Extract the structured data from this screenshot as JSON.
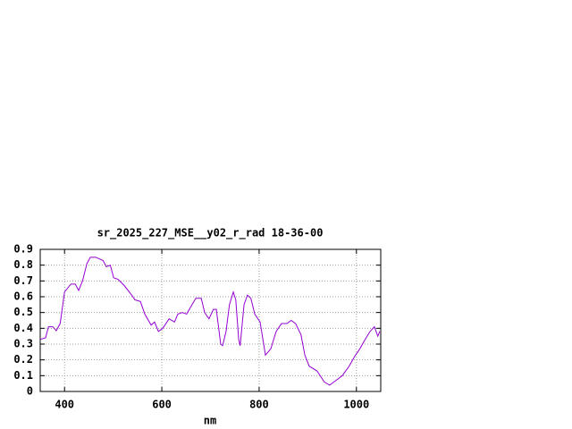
{
  "chart_data": {
    "type": "line",
    "title": "sr_2025_227_MSE__y02_r_rad 18-36-00",
    "x_label": "nm",
    "x": [
      350,
      361,
      367,
      376,
      383,
      391,
      400,
      413,
      422,
      429,
      437,
      446,
      453,
      464,
      479,
      486,
      494,
      501,
      510,
      523,
      538,
      545,
      556,
      565,
      578,
      585,
      593,
      602,
      615,
      626,
      633,
      642,
      651,
      662,
      670,
      681,
      688,
      697,
      706,
      712,
      721,
      725,
      732,
      739,
      747,
      752,
      758,
      761,
      769,
      776,
      783,
      791,
      802,
      813,
      824,
      835,
      846,
      857,
      866,
      875,
      886,
      894,
      903,
      919,
      934,
      945,
      958,
      971,
      985,
      996,
      1007,
      1018,
      1028,
      1037,
      1044,
      1048
    ],
    "series": [
      {
        "name": "sr_2025_227_MSE__y02_r_rad",
        "color": "#9400d3",
        "values": [
          0.33,
          0.34,
          0.41,
          0.41,
          0.385,
          0.43,
          0.63,
          0.68,
          0.68,
          0.64,
          0.7,
          0.81,
          0.85,
          0.85,
          0.83,
          0.79,
          0.8,
          0.72,
          0.71,
          0.67,
          0.61,
          0.58,
          0.57,
          0.49,
          0.42,
          0.44,
          0.38,
          0.4,
          0.46,
          0.44,
          0.49,
          0.5,
          0.49,
          0.55,
          0.59,
          0.59,
          0.5,
          0.46,
          0.52,
          0.52,
          0.3,
          0.29,
          0.38,
          0.55,
          0.63,
          0.58,
          0.33,
          0.29,
          0.55,
          0.61,
          0.59,
          0.49,
          0.44,
          0.23,
          0.27,
          0.38,
          0.43,
          0.43,
          0.45,
          0.43,
          0.36,
          0.23,
          0.16,
          0.13,
          0.06,
          0.04,
          0.07,
          0.1,
          0.16,
          0.22,
          0.27,
          0.33,
          0.38,
          0.41,
          0.35,
          0.38
        ]
      }
    ],
    "xlim": [
      350,
      1050
    ],
    "ylim": [
      0,
      0.9
    ],
    "xticks": [
      400,
      600,
      800,
      1000
    ],
    "yticks": [
      0,
      0.1,
      0.2,
      0.3,
      0.4,
      0.5,
      0.6,
      0.7,
      0.8,
      0.9
    ],
    "grid": true
  }
}
